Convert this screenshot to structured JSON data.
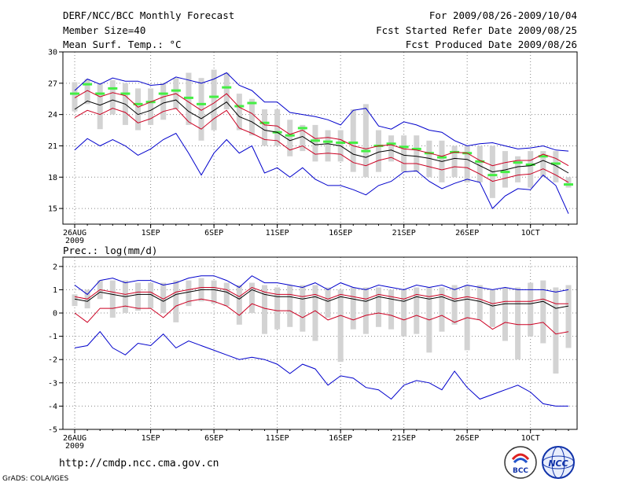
{
  "header": {
    "title": "DERF/NCC/BCC Monthly Forecast",
    "member_size": "Member Size=40",
    "variable": "Mean Surf. Temp.: °C",
    "period": "For 2009/08/26-2009/10/04",
    "fcst_started": "Fcst Started Refer Date 2009/08/25",
    "fcst_produced": "Fcst Produced Date 2009/08/26"
  },
  "footer": {
    "url": "http://cmdp.ncc.cma.gov.cn",
    "grads": "GrADS: COLA/IGES",
    "logo_bcc_text": "BCC",
    "logo_ncc_text": "NCC"
  },
  "colors": {
    "envelope": "#0000cc",
    "spread": "#cc0022",
    "mean": "#000000",
    "bar": "#d3d3d3",
    "marker": "#44ee44"
  },
  "chart_data": [
    {
      "type": "line",
      "title": "Mean Surf. Temp.: °C",
      "ylim": [
        13.5,
        30
      ],
      "yticks": [
        15,
        18,
        21,
        24,
        27,
        30
      ],
      "x_tick_labels": [
        "26AUG",
        "1SEP",
        "6SEP",
        "11SEP",
        "16SEP",
        "21SEP",
        "26SEP",
        "1OCT"
      ],
      "x_tick_days": [
        1,
        7,
        12,
        17,
        22,
        27,
        32,
        37
      ],
      "x_year_label": "2009",
      "days": 40,
      "series": [
        {
          "name": "max",
          "values": [
            26.3,
            27.4,
            26.9,
            27.5,
            27.2,
            27.2,
            26.8,
            26.9,
            27.6,
            27.3,
            27.0,
            27.4,
            28.0,
            26.8,
            26.3,
            25.2,
            25.2,
            24.2,
            24.0,
            23.8,
            23.5,
            23.0,
            24.4,
            24.6,
            22.9,
            22.6,
            23.3,
            23.0,
            22.5,
            22.3,
            21.5,
            21.0,
            21.2,
            21.3,
            21.0,
            20.7,
            20.8,
            21.0,
            20.6,
            20.5
          ]
        },
        {
          "name": "upper",
          "values": [
            25.6,
            26.3,
            25.7,
            26.1,
            25.8,
            24.7,
            25.2,
            25.7,
            26.0,
            25.2,
            24.4,
            25.1,
            26.0,
            24.7,
            24.1,
            23.0,
            22.9,
            22.1,
            22.5,
            21.7,
            21.8,
            21.6,
            21.0,
            20.7,
            21.0,
            21.1,
            20.7,
            20.6,
            20.3,
            20.0,
            20.4,
            20.3,
            19.6,
            19.1,
            19.4,
            19.6,
            19.6,
            20.2,
            19.8,
            19.1
          ]
        },
        {
          "name": "mean",
          "values": [
            24.5,
            25.3,
            24.9,
            25.4,
            25.0,
            24.0,
            24.4,
            25.1,
            25.4,
            24.3,
            23.6,
            24.4,
            25.2,
            23.8,
            23.3,
            22.5,
            22.3,
            21.5,
            21.9,
            21.1,
            21.2,
            21.0,
            20.2,
            19.9,
            20.4,
            20.6,
            20.1,
            20.0,
            19.8,
            19.5,
            19.8,
            19.7,
            19.1,
            18.5,
            18.7,
            19.0,
            19.1,
            19.6,
            19.1,
            18.4
          ]
        },
        {
          "name": "lower",
          "values": [
            23.7,
            24.4,
            24.0,
            24.6,
            24.2,
            23.2,
            23.6,
            24.3,
            24.6,
            23.3,
            22.6,
            23.6,
            24.4,
            22.7,
            22.2,
            21.6,
            21.5,
            20.6,
            21.0,
            20.2,
            20.3,
            20.2,
            19.4,
            19.1,
            19.6,
            19.9,
            19.3,
            19.3,
            19.0,
            18.7,
            19.0,
            18.9,
            18.3,
            17.6,
            17.9,
            18.2,
            18.3,
            18.8,
            18.2,
            17.5
          ]
        },
        {
          "name": "min",
          "values": [
            20.6,
            21.7,
            21.0,
            21.6,
            21.0,
            20.1,
            20.7,
            21.6,
            22.2,
            20.3,
            18.2,
            20.3,
            21.6,
            20.3,
            21.0,
            18.4,
            18.9,
            18.0,
            18.9,
            17.8,
            17.2,
            17.2,
            16.8,
            16.3,
            17.2,
            17.6,
            18.5,
            18.6,
            17.6,
            16.9,
            17.4,
            17.8,
            17.5,
            15.0,
            16.2,
            16.9,
            16.8,
            18.2,
            17.2,
            14.5
          ]
        }
      ],
      "ensemble_bars_low": [
        24.3,
        25.0,
        22.6,
        24.0,
        23.0,
        22.5,
        23.0,
        23.5,
        24.5,
        23.0,
        21.5,
        22.5,
        24.5,
        22.5,
        22.0,
        21.0,
        21.0,
        20.0,
        20.5,
        19.5,
        19.5,
        19.5,
        18.5,
        18.0,
        18.5,
        19.5,
        18.5,
        18.5,
        18.0,
        17.5,
        18.0,
        17.5,
        17.5,
        16.0,
        17.0,
        17.5,
        17.0,
        18.0,
        17.5,
        17.0
      ],
      "ensemble_bars_high": [
        27.1,
        27.4,
        27.0,
        27.3,
        27.0,
        26.5,
        26.5,
        27.0,
        27.5,
        28.0,
        27.5,
        28.3,
        28.0,
        26.0,
        25.5,
        24.5,
        24.5,
        23.5,
        23.0,
        23.0,
        22.5,
        22.5,
        24.5,
        25.0,
        22.5,
        22.0,
        22.0,
        22.0,
        21.5,
        21.5,
        21.0,
        21.0,
        21.0,
        21.0,
        20.5,
        20.0,
        20.5,
        20.5,
        20.5,
        18.0
      ],
      "markers": [
        26.0,
        26.9,
        26.0,
        26.5,
        26.0,
        25.0,
        25.2,
        26.0,
        26.3,
        25.6,
        25.0,
        25.7,
        26.6,
        24.8,
        25.1,
        23.2,
        22.3,
        22.0,
        22.7,
        21.5,
        21.4,
        21.3,
        21.3,
        20.5,
        21.0,
        21.2,
        20.9,
        20.7,
        20.3,
        19.9,
        20.4,
        20.3,
        19.5,
        18.2,
        18.5,
        19.4,
        19.2,
        20.0,
        19.3,
        17.3
      ]
    },
    {
      "type": "line",
      "title": "Prec.: log(mm/d)",
      "ylim": [
        -5,
        2.4
      ],
      "yticks": [
        -5,
        -4,
        -3,
        -2,
        -1,
        0,
        1,
        2
      ],
      "x_tick_labels": [
        "26AUG",
        "1SEP",
        "6SEP",
        "11SEP",
        "16SEP",
        "21SEP",
        "26SEP",
        "1OCT"
      ],
      "x_tick_days": [
        1,
        7,
        12,
        17,
        22,
        27,
        32,
        37
      ],
      "x_year_label": "2009",
      "days": 40,
      "series": [
        {
          "name": "max",
          "values": [
            1.2,
            0.8,
            1.4,
            1.5,
            1.3,
            1.4,
            1.4,
            1.2,
            1.3,
            1.5,
            1.6,
            1.6,
            1.4,
            1.1,
            1.6,
            1.3,
            1.3,
            1.2,
            1.1,
            1.3,
            1.0,
            1.3,
            1.1,
            1.0,
            1.2,
            1.1,
            1.0,
            1.2,
            1.1,
            1.2,
            1.0,
            1.2,
            1.1,
            1.0,
            1.1,
            1.0,
            1.0,
            1.0,
            0.9,
            1.0
          ]
        },
        {
          "name": "upper",
          "values": [
            0.7,
            0.6,
            1.0,
            0.9,
            0.8,
            0.9,
            0.9,
            0.6,
            0.9,
            1.0,
            1.1,
            1.1,
            1.0,
            0.7,
            1.1,
            0.9,
            0.8,
            0.8,
            0.7,
            0.8,
            0.6,
            0.8,
            0.7,
            0.6,
            0.8,
            0.7,
            0.6,
            0.8,
            0.7,
            0.8,
            0.6,
            0.7,
            0.6,
            0.4,
            0.5,
            0.5,
            0.5,
            0.6,
            0.4,
            0.4
          ]
        },
        {
          "name": "mean",
          "values": [
            0.6,
            0.5,
            0.9,
            0.8,
            0.7,
            0.8,
            0.8,
            0.5,
            0.8,
            0.9,
            1.0,
            1.0,
            0.9,
            0.6,
            1.0,
            0.8,
            0.7,
            0.7,
            0.6,
            0.7,
            0.5,
            0.7,
            0.6,
            0.5,
            0.7,
            0.6,
            0.5,
            0.7,
            0.6,
            0.7,
            0.5,
            0.6,
            0.5,
            0.3,
            0.4,
            0.4,
            0.4,
            0.5,
            0.2,
            0.3
          ]
        },
        {
          "name": "lower",
          "values": [
            0.0,
            -0.4,
            0.2,
            0.2,
            0.3,
            0.2,
            0.2,
            -0.2,
            0.3,
            0.5,
            0.6,
            0.5,
            0.3,
            -0.1,
            0.4,
            0.2,
            0.1,
            0.1,
            -0.2,
            0.1,
            -0.3,
            -0.1,
            -0.3,
            -0.1,
            0.0,
            -0.1,
            -0.3,
            -0.1,
            -0.3,
            -0.1,
            -0.4,
            -0.2,
            -0.3,
            -0.7,
            -0.4,
            -0.5,
            -0.5,
            -0.4,
            -0.9,
            -0.8
          ]
        },
        {
          "name": "min",
          "values": [
            -1.5,
            -1.4,
            -0.8,
            -1.5,
            -1.8,
            -1.3,
            -1.4,
            -0.9,
            -1.5,
            -1.2,
            -1.4,
            -1.6,
            -1.8,
            -2.0,
            -1.9,
            -2.0,
            -2.2,
            -2.6,
            -2.2,
            -2.4,
            -3.1,
            -2.7,
            -2.8,
            -3.2,
            -3.3,
            -3.7,
            -3.1,
            -2.9,
            -3.0,
            -3.3,
            -2.5,
            -3.2,
            -3.7,
            -3.5,
            -3.3,
            -3.1,
            -3.4,
            -3.9,
            -4.0,
            -4.0
          ]
        }
      ],
      "ensemble_bars_low": [
        0.3,
        0.2,
        0.6,
        -0.2,
        0.0,
        0.1,
        0.2,
        0.0,
        -0.4,
        0.3,
        0.5,
        0.4,
        0.3,
        -0.5,
        0.0,
        -0.9,
        -0.7,
        -0.6,
        -0.8,
        -1.2,
        -0.2,
        -2.1,
        -0.7,
        -0.9,
        -0.6,
        -0.7,
        -1.0,
        -0.9,
        -1.7,
        -0.8,
        -0.5,
        -1.6,
        -0.3,
        -0.6,
        -1.2,
        -2.0,
        -1.0,
        -1.3,
        -2.6,
        -1.5
      ],
      "ensemble_bars_high": [
        0.8,
        1.0,
        1.4,
        1.4,
        1.4,
        1.3,
        1.3,
        1.3,
        1.4,
        1.4,
        1.5,
        1.4,
        1.3,
        1.2,
        1.3,
        1.2,
        1.1,
        1.2,
        1.2,
        1.2,
        1.1,
        1.0,
        1.1,
        1.1,
        1.1,
        1.0,
        1.0,
        1.1,
        1.1,
        1.1,
        1.2,
        1.2,
        1.2,
        1.0,
        1.1,
        1.1,
        1.3,
        1.4,
        1.1,
        1.2
      ]
    }
  ]
}
